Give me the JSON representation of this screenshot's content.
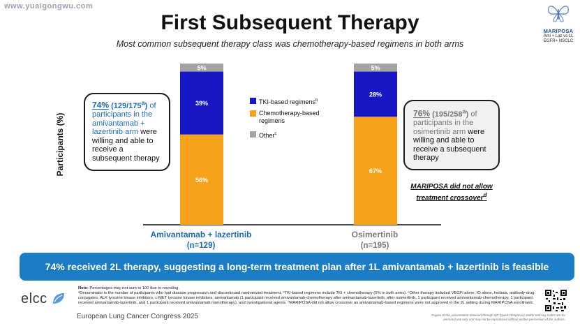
{
  "watermark": "www.yuaigongwu.com",
  "slide": {
    "title": "First Subsequent Therapy",
    "subtitle": "Most common subsequent therapy class was chemotherapy-based regimens in both arms"
  },
  "logo": {
    "name": "MARIPOSA",
    "line1": "Ami + Laz vs 1L",
    "line2": "EGFR+ NSCLC"
  },
  "callouts": {
    "left": {
      "pct": "74%",
      "count": "(129/175",
      "sup": "a",
      "close": ")",
      "of": " of",
      "blue_text": "participants in the amivantamab + lazertinib arm",
      "rest": " were willing and able to receive a subsequent therapy"
    },
    "right": {
      "pct": "76%",
      "count": "(195/258",
      "sup": "a",
      "close": ")",
      "of": " of",
      "grey_text": "participants in the osimertinib arm",
      "rest": " were willing and able to receive a subsequent therapy"
    }
  },
  "no_crossover": {
    "line1": "MARIPOSA did not allow",
    "line2": "treatment crossover",
    "sup": "d"
  },
  "chart_data": {
    "type": "bar",
    "stacked": true,
    "ylabel": "Participants (%)",
    "categories": [
      {
        "name": "Amivantamab + lazertinib",
        "n": "(n=129)"
      },
      {
        "name": "Osimertinib",
        "n": "(n=195)"
      }
    ],
    "series": [
      {
        "name": "Chemotherapy-based regimens",
        "color": "#f7a21b",
        "values": [
          56,
          67
        ]
      },
      {
        "name": "TKI-based regimens",
        "sup": "b",
        "color": "#1717c6",
        "values": [
          39,
          28
        ]
      },
      {
        "name": "Other",
        "sup": "c",
        "color": "#a4a4a4",
        "values": [
          5,
          5
        ]
      }
    ],
    "legend_order": [
      1,
      0,
      2
    ],
    "legend_position": "center",
    "grid": false
  },
  "banner": "74% received 2L therapy, suggesting a long-term treatment plan after 1L amivantamab + lazertinib is feasible",
  "footnote": {
    "note_label": "Note:",
    "note": " Percentages may not sum to 100 due to rounding.",
    "text": "ᵃDenominator is the number of participants who had disease progression and discontinued randomized treatment. ᵇTKI-based regimens include TKI + chemotherapy (5% in both arms). ᶜOther therapy included VEGFi alone, IO alone, herbals, antibody-drug conjugates, ALK tyrosine kinase inhibitors, c-MET tyrosine kinase inhibitors, amivantamab (1 participant received amivantamab-chemotherapy after amivantamab-lazertinib; after osimertinib, 1 participant received amivantamab-chemotherapy, 1 participant received amivantamab-lazertinib, and 1 participant received amivantamab monotherapy), and investigational agents. ᵈMARIPOSA did not allow crossover as amivantamab-based regimens were not approved in the 2L setting during MARIPOSA enrollment."
  },
  "footer": {
    "org": "elcc",
    "congress": "European Lung Cancer Congress 2025",
    "copy_note": "Copies of this presentation obtained through QR (Quick Response) and/or text key codes are for personal use only and may not be reproduced without written permission of the authors."
  }
}
